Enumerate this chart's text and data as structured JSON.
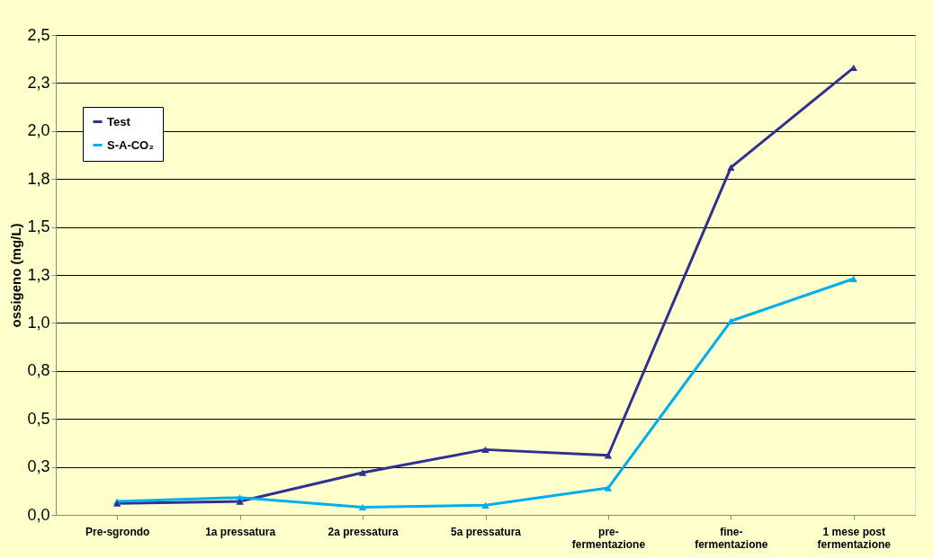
{
  "chart_data": {
    "type": "line",
    "ylabel": "ossigeno (mg/L)",
    "categories": [
      "Pre-sgrondo",
      "1a pressatura",
      "2a pressatura",
      "5a pressatura",
      "pre-\nfermentazione",
      "fine-\nfermentazione",
      "1 mese post\nfermentazione"
    ],
    "series": [
      {
        "name": "Test",
        "color": "#2e3192",
        "values": [
          0.06,
          0.07,
          0.22,
          0.34,
          0.31,
          1.81,
          2.33
        ]
      },
      {
        "name": "S-A-CO₂",
        "color": "#00aeef",
        "values": [
          0.07,
          0.09,
          0.04,
          0.05,
          0.14,
          1.01,
          1.23
        ]
      }
    ],
    "ylim": [
      0,
      2.5
    ],
    "yticks": [
      {
        "value": 0,
        "label": "0,0"
      },
      {
        "value": 0.25,
        "label": "0,3"
      },
      {
        "value": 0.5,
        "label": "0,5"
      },
      {
        "value": 0.75,
        "label": "0,8"
      },
      {
        "value": 1,
        "label": "1,0"
      },
      {
        "value": 1.25,
        "label": "1,3"
      },
      {
        "value": 1.5,
        "label": "1,5"
      },
      {
        "value": 1.75,
        "label": "1,8"
      },
      {
        "value": 2,
        "label": "2,0"
      },
      {
        "value": 2.25,
        "label": "2,3"
      },
      {
        "value": 2.5,
        "label": "2,5"
      }
    ],
    "grid": "y",
    "legend": "top left",
    "marker": "triangle",
    "line_style": "solid"
  }
}
